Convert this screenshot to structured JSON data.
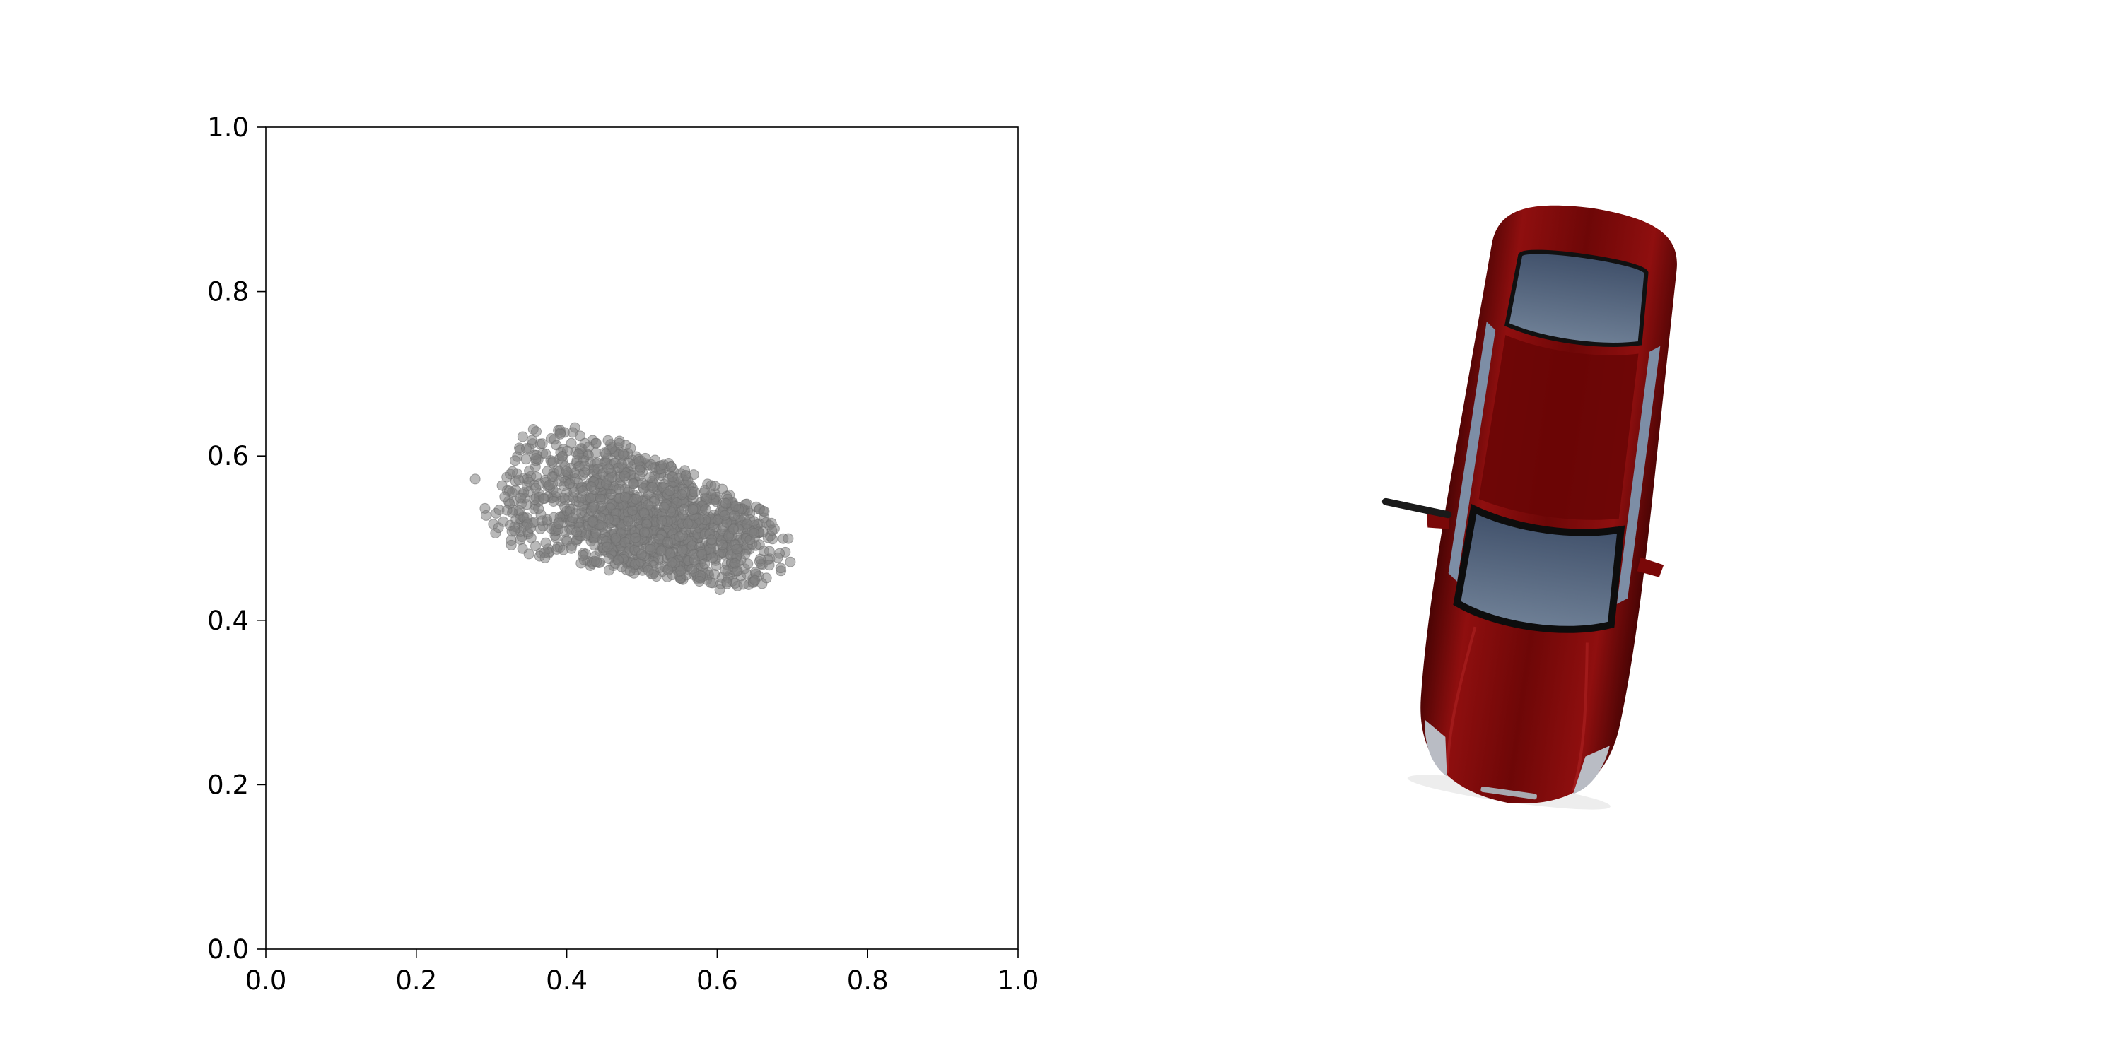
{
  "chart_data": [
    {
      "type": "scatter",
      "title": "",
      "xlabel": "",
      "ylabel": "",
      "xlim": [
        0.0,
        1.0
      ],
      "ylim": [
        0.0,
        1.0
      ],
      "xticks": [
        "0.0",
        "0.2",
        "0.4",
        "0.6",
        "0.8",
        "1.0"
      ],
      "yticks": [
        "0.0",
        "0.2",
        "0.4",
        "0.6",
        "0.8",
        "1.0"
      ],
      "grid": false,
      "marker_color": "#808080",
      "point_cloud": {
        "description_extent": "dense cloud of projected 3D points shaped like a car body",
        "x_range": [
          0.27,
          0.72
        ],
        "y_range": [
          0.41,
          0.64
        ],
        "front_center": [
          0.38,
          0.56
        ],
        "rear_center": [
          0.62,
          0.49
        ],
        "approx_point_count": 1400
      }
    }
  ],
  "image_panel": {
    "subject": "car-top-view",
    "body_color": "#7a0a0a",
    "window_color": "#55657a"
  }
}
